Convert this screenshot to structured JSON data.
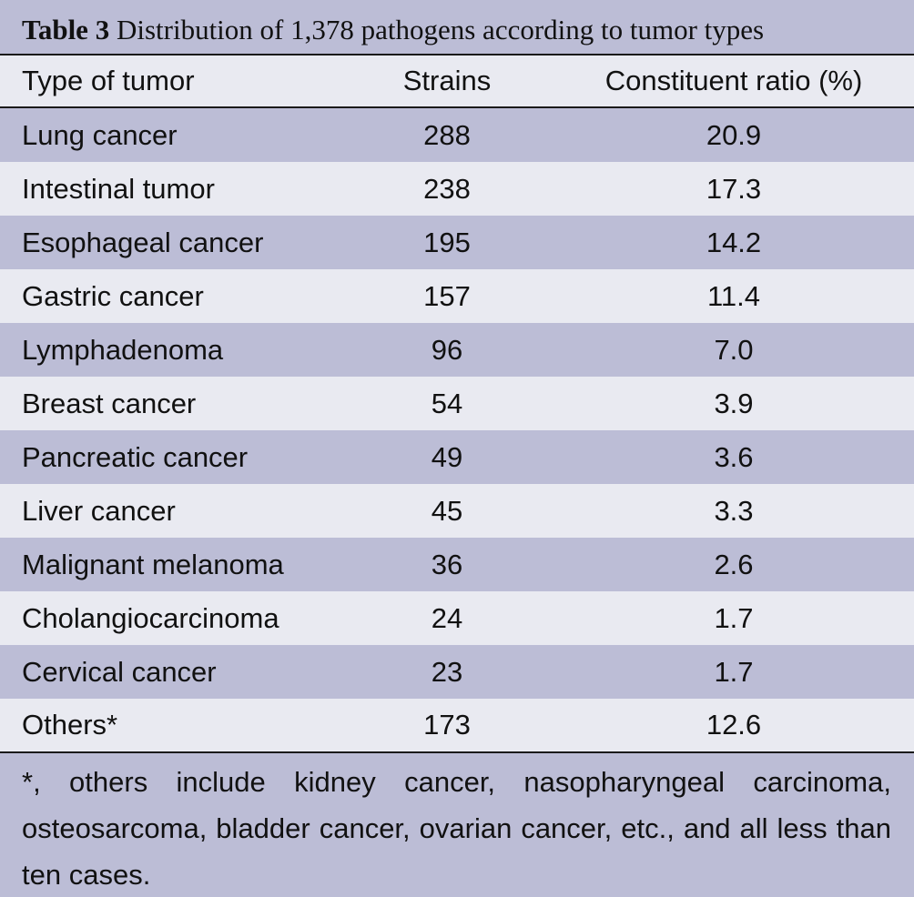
{
  "table": {
    "title_label": "Table 3",
    "title_text": "Distribution of 1,378 pathogens according to tumor types",
    "headers": [
      "Type of tumor",
      "Strains",
      "Constituent ratio (%)"
    ],
    "rows": [
      {
        "type": "Lung cancer",
        "strains": "288",
        "ratio": "20.9"
      },
      {
        "type": "Intestinal tumor",
        "strains": "238",
        "ratio": "17.3"
      },
      {
        "type": "Esophageal cancer",
        "strains": "195",
        "ratio": "14.2"
      },
      {
        "type": "Gastric cancer",
        "strains": "157",
        "ratio": "11.4"
      },
      {
        "type": "Lymphadenoma",
        "strains": "96",
        "ratio": "7.0"
      },
      {
        "type": "Breast cancer",
        "strains": "54",
        "ratio": "3.9"
      },
      {
        "type": "Pancreatic cancer",
        "strains": "49",
        "ratio": "3.6"
      },
      {
        "type": "Liver cancer",
        "strains": "45",
        "ratio": "3.3"
      },
      {
        "type": "Malignant melanoma",
        "strains": "36",
        "ratio": "2.6"
      },
      {
        "type": "Cholangiocarcinoma",
        "strains": "24",
        "ratio": "1.7"
      },
      {
        "type": "Cervical cancer",
        "strains": "23",
        "ratio": "1.7"
      },
      {
        "type": "Others*",
        "strains": "173",
        "ratio": "12.6"
      }
    ],
    "footnote": "*, others include kidney cancer, nasopharyngeal carcinoma, osteosarcoma, bladder cancer, ovarian cancer, etc., and all less than ten cases."
  },
  "colors": {
    "dark_row": "#bcbdd6",
    "light_row": "#e9eaf1",
    "rule": "#1a1a1a",
    "text": "#111111"
  }
}
